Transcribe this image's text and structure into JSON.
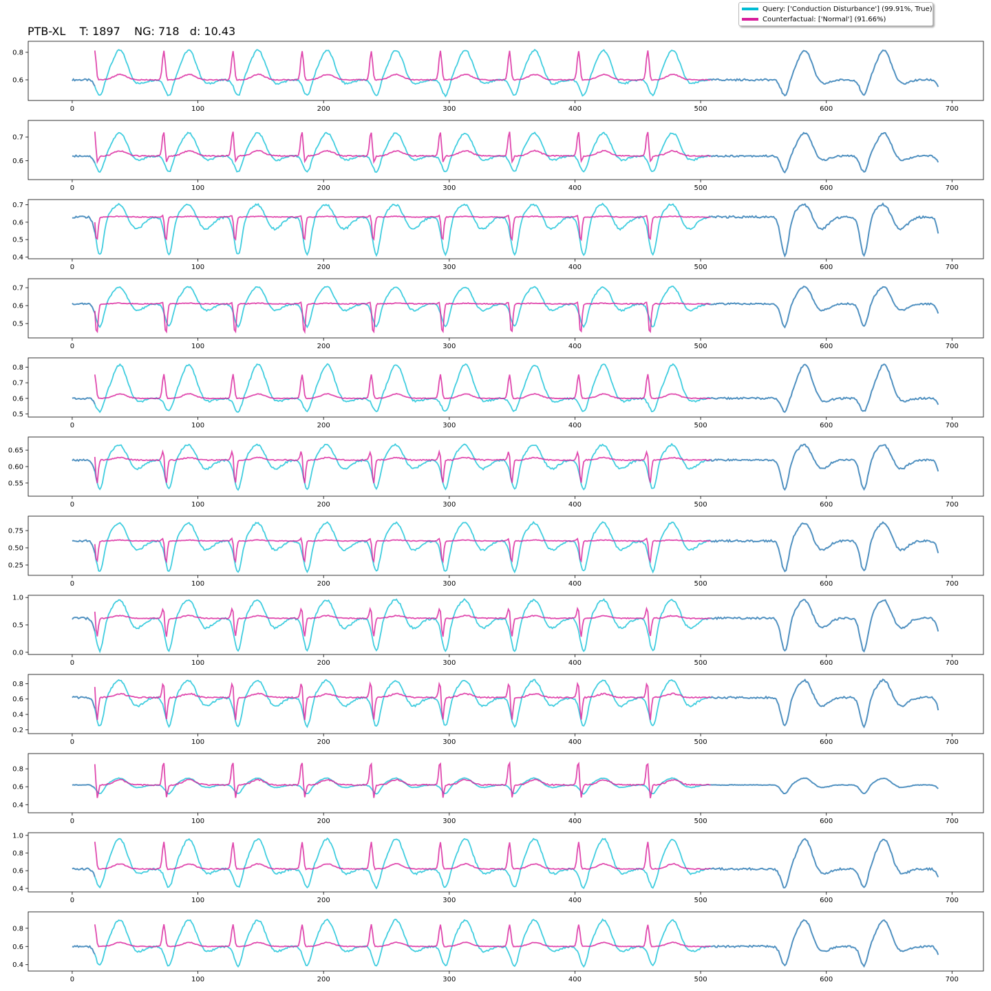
{
  "title": "PTB-XL    T: 1897    NG: 718   d: 10.43",
  "legend": {
    "query": "Query: ['Conduction Disturbance'] (99.91%, True)",
    "counterfactual": "Counterfactual: ['Normal'] (91.66%)"
  },
  "colors": {
    "query": "#00bcd4",
    "counterfactual": "#d81b9a",
    "overlap": "#4f90c0"
  },
  "chart_data": {
    "type": "line",
    "n_leads": 12,
    "x_range": [
      0,
      689
    ],
    "x_ticks": [
      0,
      100,
      200,
      300,
      400,
      500,
      600,
      700
    ],
    "counterfactual_segment": [
      18,
      508
    ],
    "beat_positions": [
      18,
      73,
      128,
      183,
      238,
      293,
      348,
      403,
      458
    ],
    "leads": [
      {
        "yticks": [
          "0.6",
          "0.8"
        ],
        "tick_values": [
          0.6,
          0.8
        ],
        "ylim": [
          0.45,
          0.88
        ],
        "base": 0.6,
        "q_amp": 0.22,
        "q_dip": 0.12,
        "c_amp": 0.22,
        "c_dip": 0.03
      },
      {
        "yticks": [
          "0.6",
          "0.7"
        ],
        "tick_values": [
          0.6,
          0.7
        ],
        "ylim": [
          0.52,
          0.77
        ],
        "base": 0.62,
        "q_amp": 0.1,
        "q_dip": 0.07,
        "c_amp": 0.12,
        "c_dip": 0.06
      },
      {
        "yticks": [
          "0.4",
          "0.5",
          "0.6",
          "0.7"
        ],
        "tick_values": [
          0.4,
          0.5,
          0.6,
          0.7
        ],
        "ylim": [
          0.39,
          0.73
        ],
        "base": 0.63,
        "q_amp": 0.08,
        "q_dip": 0.22,
        "c_amp": 0.02,
        "c_dip": 0.15
      },
      {
        "yticks": [
          "0.5",
          "0.6",
          "0.7"
        ],
        "tick_values": [
          0.5,
          0.6,
          0.7
        ],
        "ylim": [
          0.42,
          0.75
        ],
        "base": 0.61,
        "q_amp": 0.1,
        "q_dip": 0.13,
        "c_amp": 0.02,
        "c_dip": 0.18
      },
      {
        "yticks": [
          "0.5",
          "0.6",
          "0.7",
          "0.8"
        ],
        "tick_values": [
          0.5,
          0.6,
          0.7,
          0.8
        ],
        "ylim": [
          0.48,
          0.86
        ],
        "base": 0.6,
        "q_amp": 0.22,
        "q_dip": 0.09,
        "c_amp": 0.16,
        "c_dip": 0.02
      },
      {
        "yticks": [
          "0.55",
          "0.60",
          "0.65"
        ],
        "tick_values": [
          0.55,
          0.6,
          0.65
        ],
        "ylim": [
          0.51,
          0.69
        ],
        "base": 0.62,
        "q_amp": 0.05,
        "q_dip": 0.09,
        "c_amp": 0.04,
        "c_dip": 0.09
      },
      {
        "yticks": [
          "0.25",
          "0.50",
          "0.75"
        ],
        "tick_values": [
          0.25,
          0.5,
          0.75
        ],
        "ylim": [
          0.1,
          0.96
        ],
        "base": 0.6,
        "q_amp": 0.28,
        "q_dip": 0.45,
        "c_amp": 0.07,
        "c_dip": 0.35
      },
      {
        "yticks": [
          "0.0",
          "0.5",
          "1.0"
        ],
        "tick_values": [
          0.0,
          0.5,
          1.0
        ],
        "ylim": [
          -0.04,
          1.04
        ],
        "base": 0.62,
        "q_amp": 0.36,
        "q_dip": 0.6,
        "c_amp": 0.27,
        "c_dip": 0.45
      },
      {
        "yticks": [
          "0.2",
          "0.4",
          "0.6",
          "0.8"
        ],
        "tick_values": [
          0.2,
          0.4,
          0.6,
          0.8
        ],
        "ylim": [
          0.15,
          0.92
        ],
        "base": 0.62,
        "q_amp": 0.24,
        "q_dip": 0.38,
        "c_amp": 0.27,
        "c_dip": 0.4
      },
      {
        "yticks": [
          "0.4",
          "0.6",
          "0.8"
        ],
        "tick_values": [
          0.4,
          0.6,
          0.8
        ],
        "ylim": [
          0.31,
          0.97
        ],
        "base": 0.62,
        "q_amp": 0.08,
        "q_dip": 0.1,
        "c_amp": 0.32,
        "c_dip": 0.25
      },
      {
        "yticks": [
          "0.4",
          "0.6",
          "0.8",
          "1.0"
        ],
        "tick_values": [
          0.4,
          0.6,
          0.8,
          1.0
        ],
        "ylim": [
          0.36,
          1.03
        ],
        "base": 0.62,
        "q_amp": 0.35,
        "q_dip": 0.22,
        "c_amp": 0.32,
        "c_dip": 0.05
      },
      {
        "yticks": [
          "0.4",
          "0.6",
          "0.8"
        ],
        "tick_values": [
          0.4,
          0.6,
          0.8
        ],
        "ylim": [
          0.33,
          0.98
        ],
        "base": 0.6,
        "q_amp": 0.3,
        "q_dip": 0.22,
        "c_amp": 0.25,
        "c_dip": 0.03
      }
    ]
  }
}
